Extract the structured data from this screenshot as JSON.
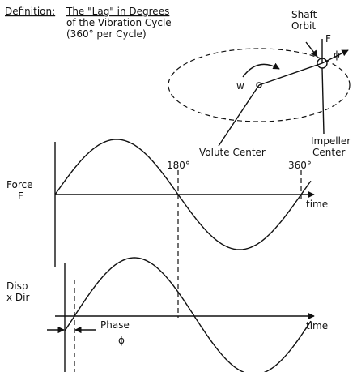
{
  "header": {
    "label": "Definition:",
    "lines": [
      "The \"Lag\" in Degrees",
      "of the Vibration Cycle",
      "(360° per Cycle)"
    ]
  },
  "orbit": {
    "shaft": [
      "Shaft",
      "Orbit"
    ],
    "force": "F",
    "angle": "ϕ",
    "rotation": "w",
    "volute": "Volute Center",
    "impeller": [
      "Impeller",
      "Center"
    ]
  },
  "waves": {
    "mark180": "180°",
    "mark360": "360°",
    "force": {
      "label": [
        "Force",
        "F"
      ],
      "axis": "time"
    },
    "disp": {
      "label": [
        "Disp",
        "x Dir"
      ],
      "axis": "time"
    },
    "phase": [
      "Phase",
      "ϕ"
    ]
  }
}
